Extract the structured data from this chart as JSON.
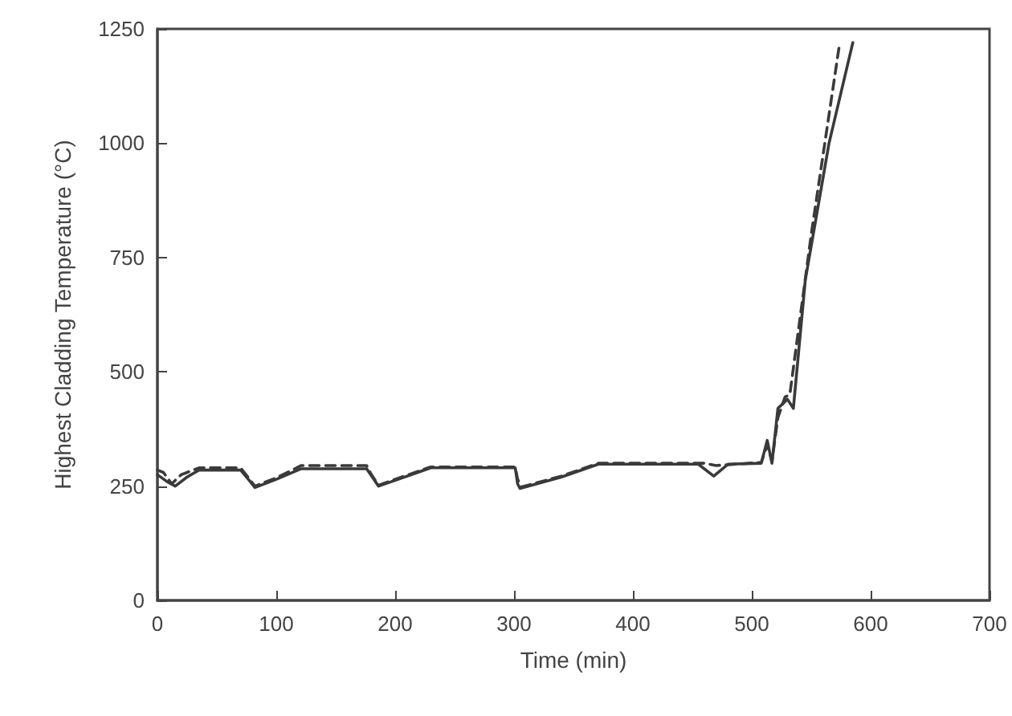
{
  "chart_data": {
    "type": "line",
    "xlabel": "Time (min)",
    "ylabel": "Highest Cladding Temperature (°C)",
    "xlim": [
      0,
      700
    ],
    "xticks": [
      0,
      100,
      200,
      300,
      400,
      500,
      600,
      700
    ],
    "ylim": [
      0,
      1250
    ],
    "yticks": [
      0,
      250,
      500,
      750,
      1000,
      1250
    ],
    "grid": false,
    "marker": "none",
    "series": [
      {
        "color": "#3a3a3a",
        "line_style": "solid",
        "x": [
          0,
          8,
          15,
          25,
          35,
          70,
          78,
          82,
          100,
          121,
          176,
          182,
          186,
          230,
          301,
          303,
          305,
          340,
          371,
          455,
          468,
          480,
          508,
          513,
          517,
          522,
          530,
          535,
          545,
          565,
          585
        ],
        "values": [
          275,
          260,
          250,
          270,
          285,
          285,
          260,
          247,
          265,
          288,
          288,
          265,
          250,
          290,
          290,
          255,
          245,
          270,
          298,
          298,
          272,
          298,
          300,
          350,
          300,
          420,
          440,
          420,
          700,
          1000,
          1220
        ]
      },
      {
        "color": "#3a3a3a",
        "line_style": "dashed",
        "x": [
          0,
          5,
          12,
          20,
          35,
          70,
          76,
          82,
          100,
          121,
          176,
          180,
          186,
          230,
          301,
          303,
          306,
          340,
          371,
          460,
          470,
          508,
          513,
          517,
          522,
          528,
          532,
          550,
          574
        ],
        "values": [
          285,
          280,
          255,
          275,
          290,
          290,
          270,
          250,
          268,
          295,
          295,
          275,
          252,
          292,
          292,
          265,
          248,
          272,
          300,
          300,
          295,
          302,
          340,
          305,
          400,
          445,
          450,
          800,
          1220
        ]
      }
    ]
  }
}
